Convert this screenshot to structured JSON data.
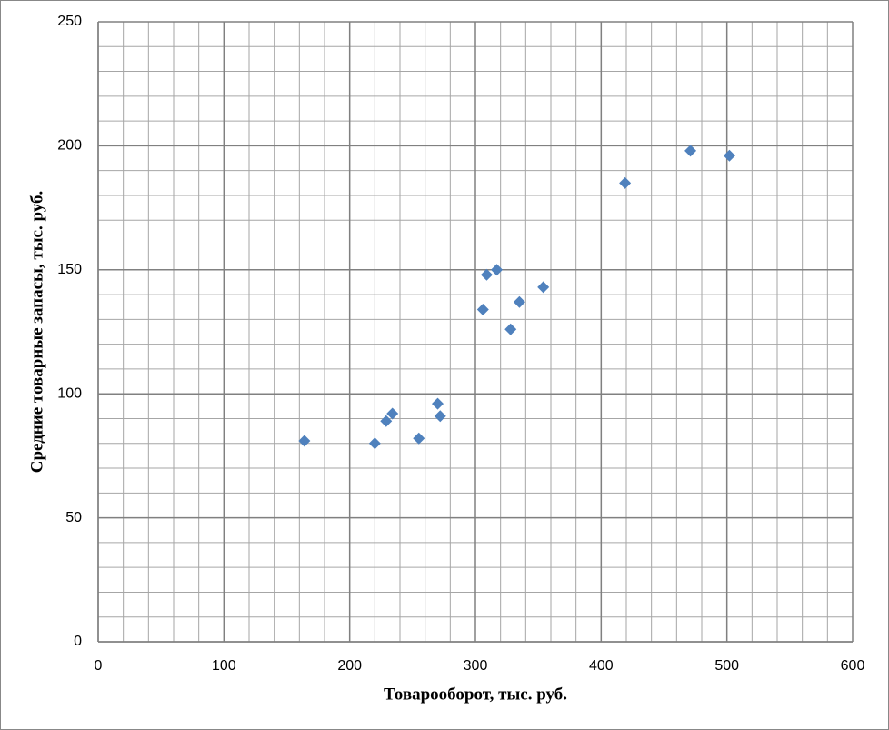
{
  "chart_data": {
    "type": "scatter",
    "xlabel": "Товарооборот, тыс. руб.",
    "ylabel": "Средние товарные запасы, тыс. руб.",
    "x": [
      164,
      220,
      229,
      234,
      255,
      270,
      272,
      306,
      309,
      317,
      328,
      335,
      354,
      419,
      471,
      502
    ],
    "series": [
      {
        "color": "#4f81bd",
        "values": [
          81,
          80,
          89,
          92,
          82,
          96,
          91,
          134,
          148,
          150,
          126,
          137,
          143,
          185,
          198,
          196
        ]
      }
    ],
    "xlim": [
      0,
      600
    ],
    "xticks": [
      0,
      100,
      200,
      300,
      400,
      500,
      600
    ],
    "ylim": [
      0,
      250
    ],
    "yticks": [
      0,
      50,
      100,
      150,
      200,
      250
    ],
    "grid": true,
    "minor_grid_step": {
      "x": 20,
      "y": 10
    }
  }
}
